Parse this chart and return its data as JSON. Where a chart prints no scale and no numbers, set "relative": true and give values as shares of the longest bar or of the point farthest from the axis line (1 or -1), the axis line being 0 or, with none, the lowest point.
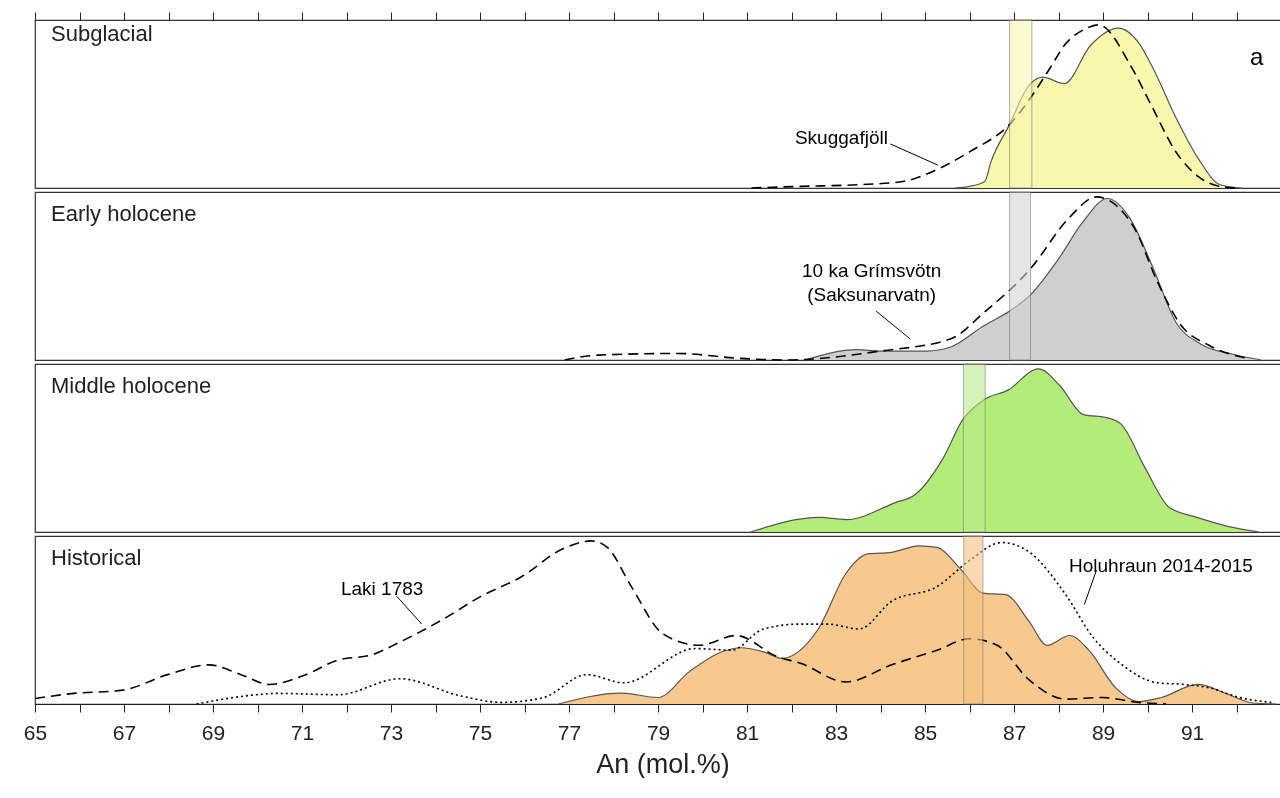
{
  "chart_data": [
    {
      "type": "area",
      "title": "Subglacial",
      "relative": true,
      "xlim": [
        65,
        93.2
      ],
      "xticks": [
        {
          "value": 65,
          "label": null
        },
        {
          "value": 66,
          "label": null
        },
        {
          "value": 67,
          "label": null
        },
        {
          "value": 68,
          "label": null
        },
        {
          "value": 69,
          "label": null
        },
        {
          "value": 70,
          "label": null
        },
        {
          "value": 71,
          "label": null
        },
        {
          "value": 72,
          "label": null
        },
        {
          "value": 73,
          "label": null
        },
        {
          "value": 74,
          "label": null
        },
        {
          "value": 75,
          "label": null
        },
        {
          "value": 76,
          "label": null
        },
        {
          "value": 77,
          "label": null
        },
        {
          "value": 78,
          "label": null
        },
        {
          "value": 79,
          "label": null
        },
        {
          "value": 80,
          "label": null
        },
        {
          "value": 81,
          "label": null
        },
        {
          "value": 82,
          "label": null
        },
        {
          "value": 83,
          "label": null
        },
        {
          "value": 84,
          "label": null
        },
        {
          "value": 85,
          "label": null
        },
        {
          "value": 86,
          "label": null
        },
        {
          "value": 87,
          "label": null
        },
        {
          "value": 88,
          "label": null
        },
        {
          "value": 89,
          "label": null
        },
        {
          "value": 90,
          "label": null
        },
        {
          "value": 91,
          "label": null
        },
        {
          "value": 92,
          "label": null
        }
      ],
      "tick_labels": false,
      "annotations": [
        "a"
      ],
      "bands": [
        {
          "axis": "x",
          "from": 86.9,
          "to": 87.4,
          "color": "#f8f6b0"
        }
      ],
      "series": [
        {
          "color": "#f9f7ae",
          "x": [
            85.67,
            86.0,
            86.34,
            86.48,
            86.9,
            87.31,
            87.64,
            88.13,
            88.72,
            89.35,
            89.8,
            90.13,
            90.64,
            91.14,
            91.63,
            92.12
          ],
          "values": [
            0,
            0.01,
            0.04,
            0.16,
            0.39,
            0.62,
            0.68,
            0.64,
            0.875,
            0.98,
            0.89,
            0.73,
            0.43,
            0.18,
            0.02,
            0
          ]
        },
        {
          "type": "line",
          "name": "Skuggafjöll",
          "color": "#000000",
          "line_style": "dashed",
          "x": [
            81.1,
            82.2,
            83.5,
            84.5,
            85.16,
            85.99,
            86.9,
            87.82,
            88.13,
            88.56,
            88.9,
            89.64,
            90.06,
            90.64,
            91.14,
            91.63,
            92.0
          ],
          "values": [
            0,
            0.01,
            0.02,
            0.04,
            0.1,
            0.22,
            0.39,
            0.74,
            0.875,
            0.97,
            1.0,
            0.74,
            0.52,
            0.22,
            0.07,
            0.01,
            0
          ]
        }
      ]
    },
    {
      "type": "area",
      "title": "Early holocene",
      "relative": true,
      "xlim": [
        65,
        93.2
      ],
      "tick_labels": false,
      "bands": [
        {
          "axis": "x",
          "from": 86.9,
          "to": 87.37,
          "color": "#d4d4d4"
        }
      ],
      "series": [
        {
          "color": "#cfcfcf",
          "x": [
            82.3,
            83.48,
            84.0,
            85.04,
            85.58,
            86.32,
            86.9,
            87.37,
            88.0,
            88.53,
            89.1,
            89.6,
            90.13,
            90.64,
            91.18,
            91.92,
            92.55
          ],
          "values": [
            0,
            0.064,
            0.055,
            0.055,
            0.08,
            0.21,
            0.3,
            0.4,
            0.62,
            0.84,
            0.99,
            0.87,
            0.56,
            0.23,
            0.1,
            0.035,
            0
          ]
        },
        {
          "type": "line",
          "name": "10 ka Grímsvötn\n(Saksunarvatn)",
          "color": "#000000",
          "line_style": "dashed",
          "x": [
            76.9,
            77.65,
            79.45,
            80.83,
            81.9,
            84.0,
            85.58,
            86.32,
            87.37,
            88.23,
            88.85,
            89.7,
            90.22,
            90.76,
            91.38,
            92.23
          ],
          "values": [
            0,
            0.03,
            0.04,
            0.01,
            0,
            0.055,
            0.13,
            0.29,
            0.56,
            0.87,
            1.0,
            0.81,
            0.48,
            0.21,
            0.09,
            0.01
          ]
        }
      ]
    },
    {
      "type": "area",
      "title": "Middle holocene",
      "relative": true,
      "xlim": [
        65,
        93.2
      ],
      "tick_labels": false,
      "bands": [
        {
          "axis": "x",
          "from": 85.86,
          "to": 86.35,
          "color": "#b8ec8a"
        }
      ],
      "series": [
        {
          "color": "#b3ec78",
          "x": [
            81.08,
            82.63,
            83.23,
            84.33,
            84.78,
            85.4,
            85.85,
            86.32,
            86.86,
            87.55,
            88.02,
            88.56,
            89.1,
            89.41,
            89.95,
            90.49,
            91.11,
            91.88,
            92.5
          ],
          "values": [
            0,
            0.09,
            0.076,
            0.18,
            0.23,
            0.45,
            0.69,
            0.81,
            0.87,
            1.0,
            0.9,
            0.72,
            0.7,
            0.66,
            0.39,
            0.15,
            0.09,
            0.03,
            0
          ]
        }
      ]
    },
    {
      "type": "area",
      "title": "Historical",
      "relative": true,
      "xlabel": "An (mol.%)",
      "xlim": [
        65,
        93.2
      ],
      "xticks": [
        65,
        {
          "value": 66,
          "label": null
        },
        67,
        {
          "value": 68,
          "label": null
        },
        69,
        {
          "value": 70,
          "label": null
        },
        71,
        {
          "value": 72,
          "label": null
        },
        73,
        {
          "value": 74,
          "label": null
        },
        75,
        {
          "value": 76,
          "label": null
        },
        77,
        {
          "value": 78,
          "label": null
        },
        79,
        {
          "value": 80,
          "label": null
        },
        81,
        {
          "value": 82,
          "label": null
        },
        83,
        {
          "value": 84,
          "label": null
        },
        85,
        {
          "value": 86,
          "label": null
        },
        87,
        {
          "value": 88,
          "label": null
        },
        89,
        {
          "value": 90,
          "label": null
        },
        91,
        {
          "value": 92,
          "label": null
        }
      ],
      "tick_labels": "x",
      "bands": [
        {
          "axis": "x",
          "from": 85.87,
          "to": 86.3,
          "color": "#f5c07e"
        }
      ],
      "series": [
        {
          "color": "#f7c98f",
          "x": [
            76.76,
            78.18,
            79.0,
            79.71,
            80.44,
            80.86,
            81.37,
            81.78,
            82.6,
            83.22,
            83.71,
            84.25,
            84.87,
            85.27,
            85.79,
            86.3,
            86.81,
            87.33,
            87.74,
            88.25,
            88.68,
            89.28,
            89.79,
            90.31,
            91.13,
            91.75,
            92.37,
            92.88
          ],
          "values": [
            0,
            0.067,
            0.04,
            0.2,
            0.32,
            0.345,
            0.32,
            0.28,
            0.46,
            0.8,
            0.92,
            0.93,
            0.97,
            0.96,
            0.83,
            0.68,
            0.67,
            0.51,
            0.36,
            0.42,
            0.33,
            0.1,
            0.015,
            0.04,
            0.12,
            0.066,
            0.006,
            0
          ]
        },
        {
          "type": "line",
          "name": "Laki 1783",
          "color": "#000000",
          "line_style": "dashed",
          "x": [
            65.0,
            65.87,
            66.97,
            67.98,
            68.9,
            69.63,
            70.26,
            71.09,
            71.81,
            72.55,
            73.2,
            74.11,
            75.02,
            75.93,
            76.85,
            77.5,
            77.86,
            78.4,
            79.11,
            79.93,
            80.75,
            81.68,
            82.2,
            83.22,
            84.25,
            85.27,
            86.0,
            86.62,
            87.33,
            88.16,
            88.97,
            89.79,
            90.42
          ],
          "values": [
            0.034,
            0.065,
            0.085,
            0.18,
            0.24,
            0.18,
            0.12,
            0.18,
            0.27,
            0.3,
            0.38,
            0.51,
            0.66,
            0.78,
            0.95,
            1.0,
            0.96,
            0.72,
            0.43,
            0.36,
            0.42,
            0.29,
            0.25,
            0.135,
            0.24,
            0.33,
            0.4,
            0.36,
            0.15,
            0.03,
            0.04,
            0.01,
            0
          ]
        },
        {
          "type": "line",
          "name": "Holuhraun 2014-2015",
          "color": "#000000",
          "line_style": "dotted",
          "x": [
            68.63,
            69.99,
            70.44,
            71.81,
            73.2,
            74.56,
            75.48,
            76.4,
            77.4,
            78.23,
            79.83,
            80.65,
            81.37,
            82.19,
            82.8,
            83.52,
            84.25,
            85.27,
            86.0,
            86.72,
            87.35,
            88.16,
            88.77,
            89.38,
            90.22,
            90.82,
            91.45,
            92.06,
            92.78
          ],
          "values": [
            0,
            0.057,
            0.065,
            0.057,
            0.155,
            0.05,
            0.01,
            0.037,
            0.18,
            0.13,
            0.34,
            0.33,
            0.46,
            0.49,
            0.49,
            0.46,
            0.63,
            0.72,
            0.88,
            0.99,
            0.93,
            0.67,
            0.41,
            0.25,
            0.13,
            0.12,
            0.095,
            0.04,
            0.01
          ]
        }
      ]
    }
  ]
}
